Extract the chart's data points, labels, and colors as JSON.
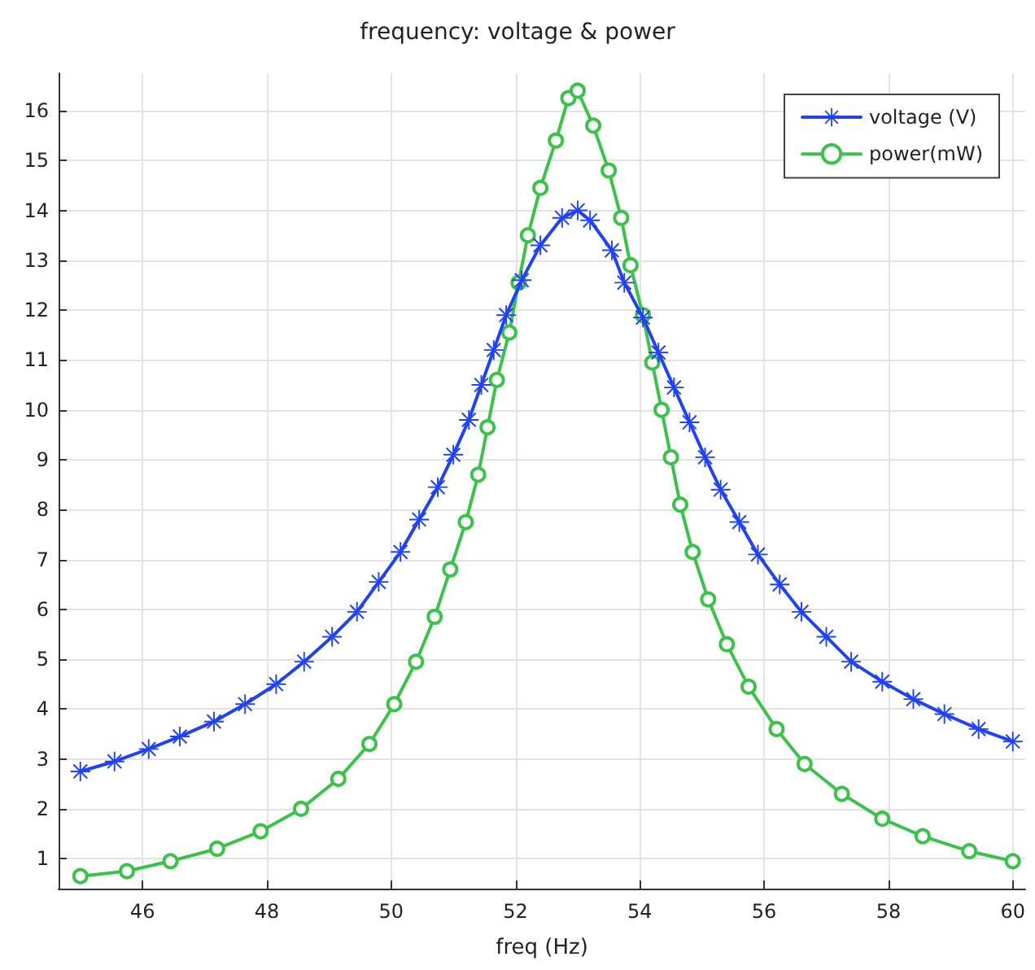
{
  "chart_data": {
    "type": "line",
    "title": "frequency: voltage & power",
    "xlabel": "freq (Hz)",
    "xlim": [
      44.65,
      60.2
    ],
    "xticks": [
      46,
      48,
      50,
      52,
      54,
      56,
      58,
      60
    ],
    "ylim": [
      0.4,
      16.75
    ],
    "yticks": [
      1,
      2,
      3,
      4,
      5,
      6,
      7,
      8,
      9,
      10,
      11,
      12,
      13,
      14,
      15,
      16
    ],
    "grid": true,
    "legend": "top right",
    "line_style": "solid",
    "series": [
      {
        "name": "voltage (V)",
        "color": "#2142f0",
        "marker": "cross",
        "x": [
          45,
          45.55,
          46.1,
          46.6,
          47.15,
          47.65,
          48.15,
          48.6,
          49.05,
          49.45,
          49.8,
          50.15,
          50.45,
          50.75,
          51.0,
          51.25,
          51.45,
          51.65,
          51.85,
          52.1,
          52.4,
          52.75,
          53.0,
          53.2,
          53.55,
          53.75,
          54.05,
          54.3,
          54.55,
          54.8,
          55.05,
          55.3,
          55.6,
          55.9,
          56.25,
          56.6,
          57.0,
          57.4,
          57.9,
          58.4,
          58.9,
          59.45,
          60
        ],
        "values": [
          2.75,
          2.95,
          3.2,
          3.45,
          3.75,
          4.1,
          4.5,
          4.95,
          5.45,
          5.95,
          6.55,
          7.15,
          7.8,
          8.45,
          9.1,
          9.8,
          10.5,
          11.2,
          11.9,
          12.6,
          13.3,
          13.85,
          14.0,
          13.8,
          13.2,
          12.55,
          11.85,
          11.15,
          10.45,
          9.75,
          9.05,
          8.4,
          7.75,
          7.1,
          6.5,
          5.95,
          5.45,
          4.95,
          4.55,
          4.2,
          3.9,
          3.6,
          3.35
        ]
      },
      {
        "name": "power(mW)",
        "color": "#3cc24a",
        "marker": "circle",
        "x": [
          45,
          45.75,
          46.45,
          47.2,
          47.9,
          48.55,
          49.15,
          49.65,
          50.05,
          50.4,
          50.7,
          50.95,
          51.2,
          51.4,
          51.55,
          51.7,
          51.9,
          52.05,
          52.2,
          52.4,
          52.65,
          52.85,
          53.0,
          53.25,
          53.5,
          53.7,
          53.85,
          54.05,
          54.2,
          54.35,
          54.5,
          54.65,
          54.85,
          55.1,
          55.4,
          55.75,
          56.2,
          56.65,
          57.25,
          57.9,
          58.55,
          59.3,
          60
        ],
        "values": [
          0.65,
          0.75,
          0.95,
          1.2,
          1.55,
          2.0,
          2.6,
          3.3,
          4.1,
          4.95,
          5.85,
          6.8,
          7.75,
          8.7,
          9.65,
          10.6,
          11.55,
          12.55,
          13.5,
          14.45,
          15.4,
          16.25,
          16.4,
          15.7,
          14.8,
          13.85,
          12.9,
          11.9,
          10.95,
          10.0,
          9.05,
          8.1,
          7.15,
          6.2,
          5.3,
          4.45,
          3.6,
          2.9,
          2.3,
          1.8,
          1.45,
          1.15,
          0.95
        ]
      }
    ]
  }
}
